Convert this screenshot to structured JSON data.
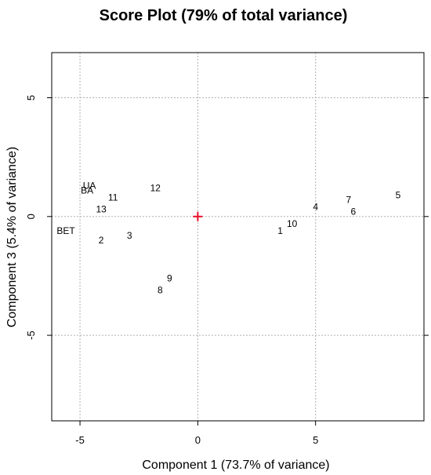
{
  "chart_data": {
    "type": "scatter",
    "title": "Score Plot (79% of total variance)",
    "xlabel": "Component 1 (73.7% of variance)",
    "ylabel": "Component 3 (5.4% of variance)",
    "xlim": [
      -6.2,
      9.6
    ],
    "ylim": [
      -8.6,
      6.9
    ],
    "xticks": [
      -5,
      0,
      5
    ],
    "yticks": [
      -5,
      0,
      5
    ],
    "grid": true,
    "grid_lines_x": [
      -5,
      0,
      5
    ],
    "grid_lines_y": [
      -5,
      0,
      5
    ],
    "points": [
      {
        "label": "UA",
        "x": -4.6,
        "y": 1.3
      },
      {
        "label": "BA",
        "x": -4.7,
        "y": 1.1
      },
      {
        "label": "11",
        "x": -3.6,
        "y": 0.8
      },
      {
        "label": "12",
        "x": -1.8,
        "y": 1.2
      },
      {
        "label": "13",
        "x": -4.1,
        "y": 0.3
      },
      {
        "label": "BET",
        "x": -5.6,
        "y": -0.6
      },
      {
        "label": "2",
        "x": -4.1,
        "y": -1.0
      },
      {
        "label": "3",
        "x": -2.9,
        "y": -0.8
      },
      {
        "label": "9",
        "x": -1.2,
        "y": -2.6
      },
      {
        "label": "8",
        "x": -1.6,
        "y": -3.1
      },
      {
        "label": "1",
        "x": 3.5,
        "y": -0.6
      },
      {
        "label": "10",
        "x": 4.0,
        "y": -0.3
      },
      {
        "label": "4",
        "x": 5.0,
        "y": 0.4
      },
      {
        "label": "7",
        "x": 6.4,
        "y": 0.7
      },
      {
        "label": "6",
        "x": 6.6,
        "y": 0.2
      },
      {
        "label": "5",
        "x": 8.5,
        "y": 0.9
      }
    ],
    "center_marker": {
      "x": 0,
      "y": 0,
      "color": "#e8102a"
    },
    "colors": {
      "grid": "#b0b0b0",
      "axis": "#000000",
      "text": "#000000"
    }
  }
}
